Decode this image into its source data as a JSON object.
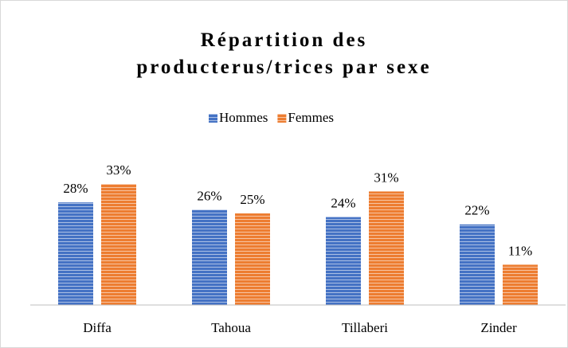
{
  "chart_data": {
    "type": "bar",
    "title": "Répartition des producterus/trices par sexe",
    "categories": [
      "Diffa",
      "Tahoua",
      "Tillaberi",
      "Zinder"
    ],
    "series": [
      {
        "name": "Hommes",
        "color": "#4472c4",
        "values": [
          28,
          26,
          24,
          22
        ],
        "value_labels": [
          "28%",
          "26%",
          "24%",
          "22%"
        ]
      },
      {
        "name": "Femmes",
        "color": "#ed7d31",
        "values": [
          33,
          25,
          31,
          11
        ],
        "value_labels": [
          "33%",
          "25%",
          "31%",
          "11%"
        ]
      }
    ],
    "ylim": [
      0,
      40
    ],
    "legend": "top"
  }
}
